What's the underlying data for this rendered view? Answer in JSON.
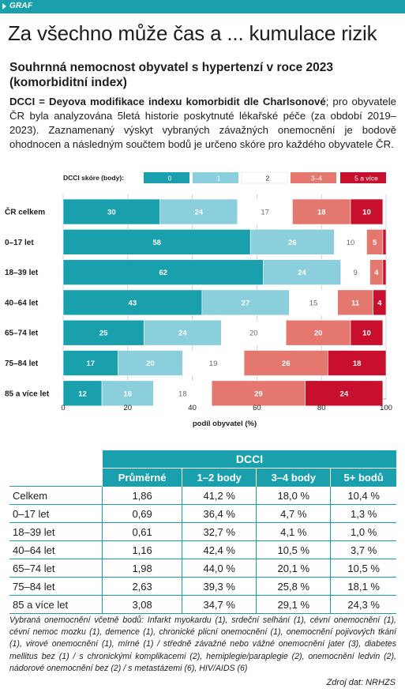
{
  "tag": "GRAF",
  "headline": "Za všechno může čas a ... kumulace rizik",
  "subtitle": "Souhrnná nemocnost obyvatel s hypertenzí v roce 2023 (komorbiditní index)",
  "description": {
    "bold": "DCCI = Deyova modifikace indexu komorbidit dle Charlsonové",
    "rest": "; pro obyvatele ČR byla analyzována 5letá historie poskytnuté lékařské péče (za období 2019–2023). Zaznamenaný výskyt vybraných závažných onemocnění je bodově ohodnocen a následným součtem bodů je určeno skóre pro každého obyvatele ČR."
  },
  "chart_data": {
    "type": "bar",
    "orientation": "horizontal",
    "stacked": true,
    "legend_title": "DCCI skóre (body):",
    "legend_position": "top",
    "categories": [
      "ČR celkem",
      "0–17 let",
      "18–39 let",
      "40–64 let",
      "65–74 let",
      "75–84 let",
      "85 a více let"
    ],
    "series": [
      {
        "name": "0",
        "color": "#1aa0ad",
        "values": [
          30,
          58,
          62,
          43,
          25,
          17,
          12
        ]
      },
      {
        "name": "1",
        "color": "#8ccfdc",
        "values": [
          24,
          26,
          24,
          27,
          24,
          20,
          16
        ]
      },
      {
        "name": "2",
        "color": "#ffffff",
        "values": [
          17,
          10,
          9,
          15,
          20,
          19,
          18
        ]
      },
      {
        "name": "3–4",
        "color": "#e4786f",
        "values": [
          18,
          5,
          4,
          11,
          20,
          26,
          29
        ]
      },
      {
        "name": "5 a více",
        "color": "#c8102e",
        "values": [
          10,
          1,
          1,
          4,
          10,
          18,
          24
        ]
      }
    ],
    "labels_shown": [
      [
        true,
        true,
        true,
        true,
        true
      ],
      [
        true,
        true,
        true,
        true,
        false
      ],
      [
        true,
        true,
        true,
        true,
        false
      ],
      [
        true,
        true,
        true,
        true,
        true
      ],
      [
        true,
        true,
        true,
        true,
        true
      ],
      [
        true,
        true,
        true,
        true,
        true
      ],
      [
        true,
        true,
        true,
        true,
        true
      ]
    ],
    "xlabel": "podíl obyvatel (%)",
    "xlim": [
      0,
      100
    ],
    "xticks": [
      0,
      20,
      40,
      60,
      80,
      100
    ],
    "grid": true
  },
  "table": {
    "group_header": "DCCI",
    "columns": [
      "Průměrné",
      "1–2 body",
      "3–4 body",
      "5+ bodů"
    ],
    "rows": [
      {
        "label": "Celkem",
        "values": [
          "1,86",
          "41,2 %",
          "18,0 %",
          "10,4 %"
        ]
      },
      {
        "label": "0–17 let",
        "values": [
          "0,69",
          "36,4 %",
          "4,7 %",
          "1,3 %"
        ]
      },
      {
        "label": "18–39 let",
        "values": [
          "0,61",
          "32,7 %",
          "4,1 %",
          "1,0 %"
        ]
      },
      {
        "label": "40–64 let",
        "values": [
          "1,16",
          "42,4 %",
          "10,5 %",
          "3,7 %"
        ]
      },
      {
        "label": "65–74 let",
        "values": [
          "1,98",
          "44,0 %",
          "20,1 %",
          "10,5 %"
        ]
      },
      {
        "label": "75–84 let",
        "values": [
          "2,63",
          "39,3 %",
          "25,8 %",
          "18,1 %"
        ]
      },
      {
        "label": "85 a více let",
        "values": [
          "3,08",
          "34,7 %",
          "29,1 %",
          "24,3 %"
        ]
      }
    ]
  },
  "footnote": "Vybraná onemocnění včetně bodů: Infarkt myokardu (1), srdeční selhání (1), cévní onemocnění (1), cévní nemoc mozku (1), demence (1), chronické plicní onemocnění (1), onemocnění pojivových tkání (1), virové onemocnění (1), mírné (1) / středně závažné nebo vážné onemocnění jater (3), diabetes mellitus bez (1) / s chronickými komplikacemi (2), hemiplegie/paraplegie (2), onemocnění ledvin (2), nádorové onemocnění bez (2) / s metastázemi (6), HIV/AIDS (6)",
  "source": "Zdroj dat: NRHZS",
  "colors": {
    "accent": "#1aa0ad",
    "light_blue": "#8ccfdc",
    "salmon": "#e4786f",
    "red": "#c8102e"
  }
}
